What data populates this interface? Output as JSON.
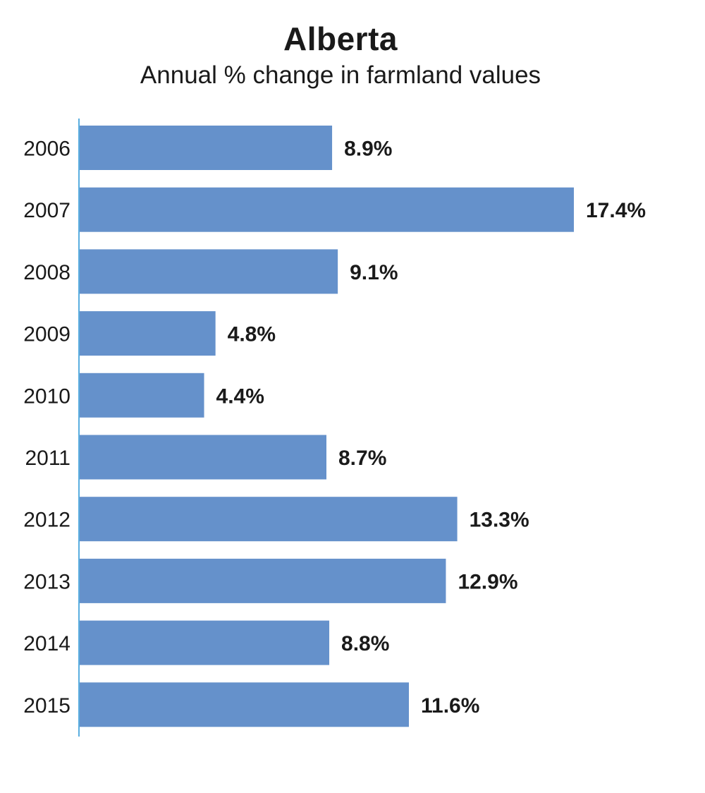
{
  "chart_data": {
    "type": "bar",
    "orientation": "horizontal",
    "title": "Alberta",
    "subtitle": "Annual % change in farmland values",
    "categories": [
      "2006",
      "2007",
      "2008",
      "2009",
      "2010",
      "2011",
      "2012",
      "2013",
      "2014",
      "2015"
    ],
    "values": [
      8.9,
      17.4,
      9.1,
      4.8,
      4.4,
      8.7,
      13.3,
      12.9,
      8.8,
      11.6
    ],
    "data_labels": [
      "8.9%",
      "17.4%",
      "9.1%",
      "4.8%",
      "4.4%",
      "8.7%",
      "13.3%",
      "12.9%",
      "8.8%",
      "11.6%"
    ],
    "xlabel": "",
    "ylabel": "",
    "xlim": [
      0,
      17.4
    ],
    "grid": false,
    "legend": "none",
    "bar_color": "#6591cb",
    "axis_color": "#5aaee0"
  }
}
